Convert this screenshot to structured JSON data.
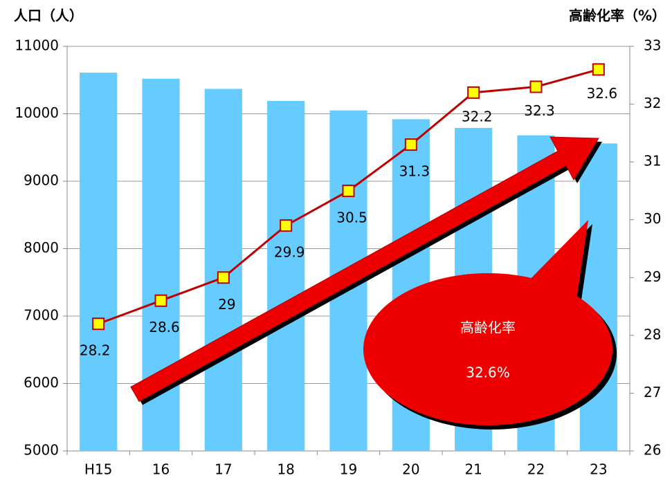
{
  "chart_data": {
    "type": "bar",
    "y_label": "人口（人）",
    "y2_label": "高齢化率（%）",
    "categories": [
      "H15",
      "16",
      "17",
      "18",
      "19",
      "20",
      "21",
      "22",
      "23"
    ],
    "series": [
      {
        "name": "人口",
        "color": "#66ccff",
        "values": [
          10610,
          10520,
          10370,
          10190,
          10050,
          9920,
          9790,
          9680,
          9560
        ]
      },
      {
        "name": "高齢化率",
        "color": "#c00000",
        "marker_color": "#ffff00",
        "axis": "y2",
        "values": [
          28.2,
          28.6,
          29,
          29.9,
          30.5,
          31.3,
          32.2,
          32.3,
          32.6
        ]
      }
    ],
    "ylim": [
      5000,
      11000
    ],
    "yticks": [
      5000,
      6000,
      7000,
      8000,
      9000,
      10000,
      11000
    ],
    "y2lim": [
      26,
      33
    ],
    "y2ticks": [
      26,
      27,
      28,
      29,
      30,
      31,
      32,
      33
    ],
    "grid": true,
    "annotation": {
      "title": "高齢化率",
      "text": "32.6%"
    }
  }
}
